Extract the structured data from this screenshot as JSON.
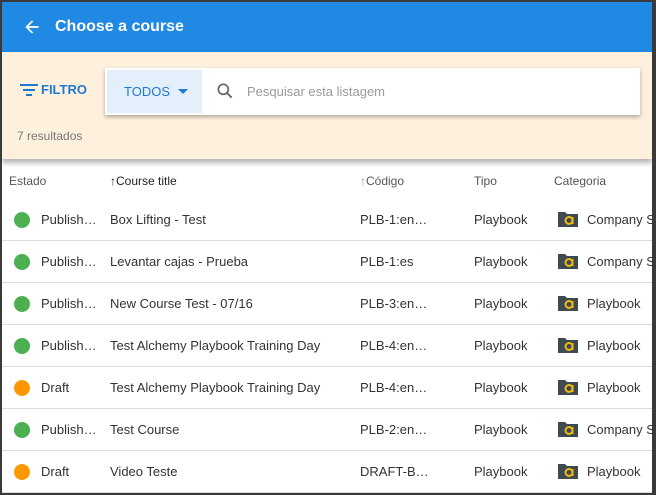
{
  "header": {
    "title": "Choose a course"
  },
  "filter": {
    "label": "FILTRO",
    "dropdown": "TODOS",
    "search_placeholder": "Pesquisar esta listagem",
    "results": "7 resultados"
  },
  "columns": {
    "status": "Estado",
    "title": "Course title",
    "code": "Código",
    "type": "Tipo",
    "category": "Categoria"
  },
  "colors": {
    "published": "#4caf50",
    "draft": "#ff9800",
    "accent": "#2089e3"
  },
  "rows": [
    {
      "status": "Publish…",
      "state": "published",
      "title": "Box Lifting - Test",
      "code": "PLB-1:en…",
      "type": "Playbook",
      "category": "Company S"
    },
    {
      "status": "Publish…",
      "state": "published",
      "title": "Levantar cajas - Prueba",
      "code": "PLB-1:es",
      "type": "Playbook",
      "category": "Company S"
    },
    {
      "status": "Publish…",
      "state": "published",
      "title": "New Course Test - 07/16",
      "code": "PLB-3:en…",
      "type": "Playbook",
      "category": "Playbook"
    },
    {
      "status": "Publish…",
      "state": "published",
      "title": "Test Alchemy Playbook Training Day",
      "code": "PLB-4:en…",
      "type": "Playbook",
      "category": "Playbook"
    },
    {
      "status": "Draft",
      "state": "draft",
      "title": "Test Alchemy Playbook Training Day",
      "code": "PLB-4:en…",
      "type": "Playbook",
      "category": "Playbook"
    },
    {
      "status": "Publish…",
      "state": "published",
      "title": "Test Course",
      "code": "PLB-2:en…",
      "type": "Playbook",
      "category": "Company S"
    },
    {
      "status": "Draft",
      "state": "draft",
      "title": "Video Teste",
      "code": "DRAFT-B…",
      "type": "Playbook",
      "category": "Playbook"
    }
  ]
}
